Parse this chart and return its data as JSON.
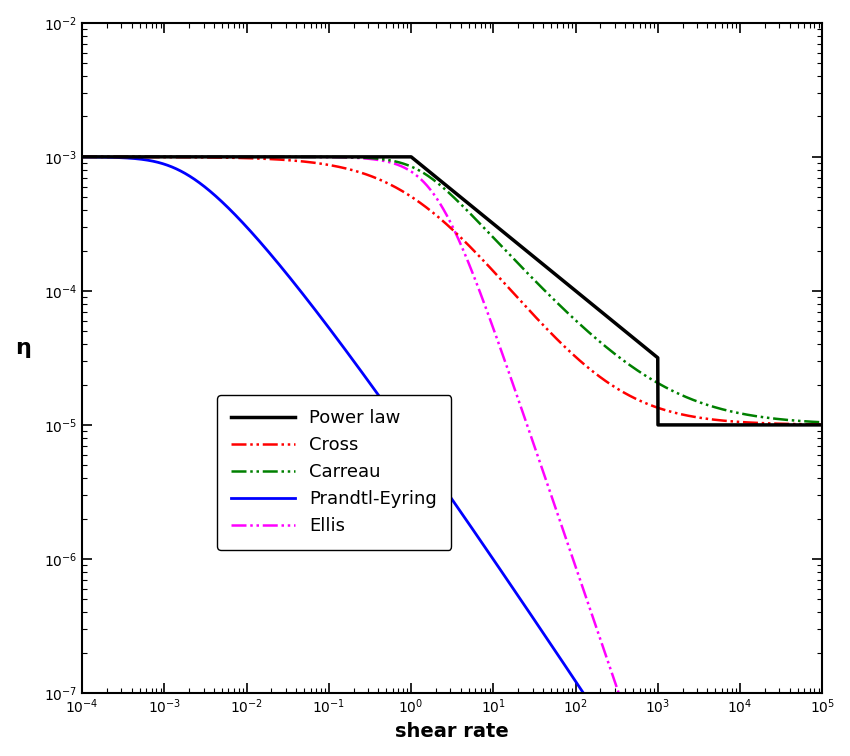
{
  "title": "",
  "xlabel": "shear rate",
  "ylabel": "η",
  "xlim": [
    0.0001,
    100000.0
  ],
  "ylim": [
    1e-07,
    0.01
  ],
  "eta0": 0.001,
  "eta_inf": 1e-05,
  "background_color": "#ffffff",
  "legend_labels": [
    "Power law",
    "Cross",
    "Carreau",
    "Prandtl-Eyring",
    "Ellis"
  ],
  "legend_colors": [
    "black",
    "red",
    "green",
    "blue",
    "magenta"
  ],
  "power_law_n": 0.5,
  "power_law_gamma_c1": 1.0,
  "power_law_gamma_c2": 1000.0,
  "cross_K": 1.0,
  "cross_m": 0.82,
  "carreau_lambda": 0.8,
  "carreau_n": 0.32,
  "prandtl_eta0": 0.001,
  "prandtl_B": 1000.0,
  "ellis_eta0": 0.001,
  "ellis_alpha": 2.8,
  "ellis_tau_half": 0.002
}
